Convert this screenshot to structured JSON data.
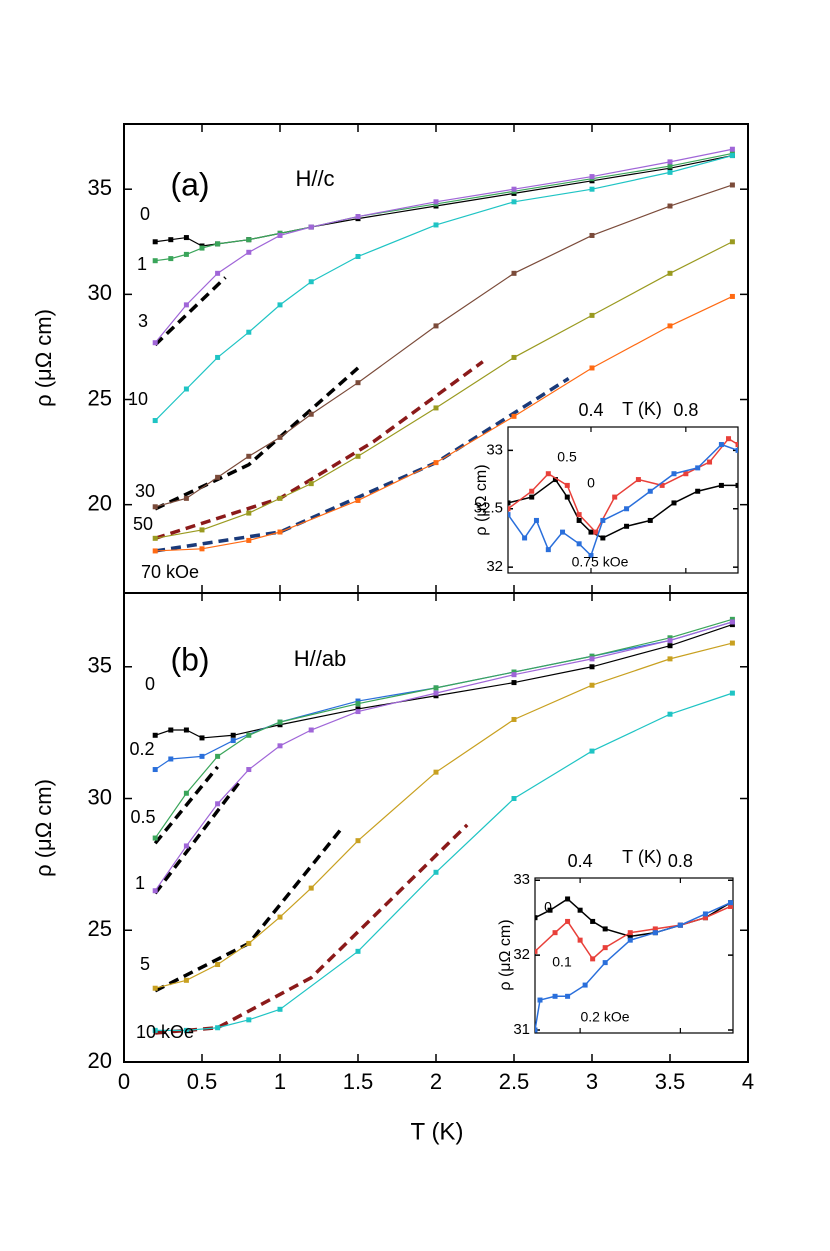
{
  "chart_data": [
    {
      "type": "line",
      "panel_label": "(a)",
      "field": "H//c",
      "ylabel": "ρ (μΩ cm)",
      "xlim": [
        0,
        4
      ],
      "ylim": [
        15.8,
        38.1
      ],
      "xticks": [
        0,
        0.5,
        1,
        1.5,
        2,
        2.5,
        3,
        3.5,
        4
      ],
      "yticks": [
        20,
        25,
        30,
        35
      ],
      "series": [
        {
          "name": "0",
          "color": "#000000",
          "x": [
            0.2,
            0.3,
            0.4,
            0.5,
            0.6,
            0.8,
            1.0,
            1.2,
            1.5,
            2.0,
            2.5,
            3.0,
            3.5,
            3.9
          ],
          "values": [
            32.5,
            32.6,
            32.7,
            32.3,
            32.4,
            32.6,
            32.9,
            33.2,
            33.6,
            34.2,
            34.8,
            35.4,
            36.0,
            36.6
          ]
        },
        {
          "name": "1",
          "color": "#3aa55a",
          "x": [
            0.2,
            0.3,
            0.4,
            0.5,
            0.6,
            0.8,
            1.0,
            1.2,
            1.5,
            2.0,
            2.5,
            3.0,
            3.5,
            3.9
          ],
          "values": [
            31.6,
            31.7,
            31.9,
            32.2,
            32.4,
            32.6,
            32.9,
            33.2,
            33.7,
            34.3,
            34.9,
            35.5,
            36.1,
            36.7
          ]
        },
        {
          "name": "3",
          "color": "#a066d8",
          "x": [
            0.2,
            0.4,
            0.6,
            0.8,
            1.0,
            1.2,
            1.5,
            2.0,
            2.5,
            3.0,
            3.5,
            3.9
          ],
          "values": [
            27.7,
            29.5,
            31.0,
            32.0,
            32.8,
            33.2,
            33.7,
            34.4,
            35.0,
            35.6,
            36.3,
            36.9
          ]
        },
        {
          "name": "10",
          "color": "#1fc4c4",
          "x": [
            0.2,
            0.4,
            0.6,
            0.8,
            1.0,
            1.2,
            1.5,
            2.0,
            2.5,
            3.0,
            3.5,
            3.9
          ],
          "values": [
            24.0,
            25.5,
            27.0,
            28.2,
            29.5,
            30.6,
            31.8,
            33.3,
            34.4,
            35.0,
            35.8,
            36.6
          ]
        },
        {
          "name": "30",
          "color": "#7b4b3a",
          "x": [
            0.2,
            0.4,
            0.6,
            0.8,
            1.0,
            1.2,
            1.5,
            2.0,
            2.5,
            3.0,
            3.5,
            3.9
          ],
          "values": [
            19.9,
            20.3,
            21.3,
            22.3,
            23.2,
            24.3,
            25.8,
            28.5,
            31.0,
            32.8,
            34.2,
            35.2
          ]
        },
        {
          "name": "50",
          "color": "#9a9a20",
          "x": [
            0.2,
            0.5,
            0.8,
            1.0,
            1.2,
            1.5,
            2.0,
            2.5,
            3.0,
            3.5,
            3.9
          ],
          "values": [
            18.4,
            18.8,
            19.6,
            20.3,
            21.0,
            22.3,
            24.6,
            27.0,
            29.0,
            31.0,
            32.5
          ]
        },
        {
          "name": "70 kOe",
          "color": "#ff6a13",
          "x": [
            0.2,
            0.5,
            0.8,
            1.0,
            1.5,
            2.0,
            2.5,
            3.0,
            3.5,
            3.9
          ],
          "values": [
            17.8,
            17.9,
            18.3,
            18.7,
            20.2,
            22.0,
            24.2,
            26.5,
            28.5,
            29.9
          ]
        }
      ],
      "fits": [
        {
          "color": "#000000",
          "x": [
            0.2,
            0.65
          ],
          "values": [
            27.6,
            30.8
          ]
        },
        {
          "color": "#000000",
          "x": [
            0.2,
            0.8,
            1.5
          ],
          "values": [
            19.8,
            21.9,
            26.5
          ]
        },
        {
          "color": "#8b1a1a",
          "x": [
            0.2,
            1.0,
            1.6,
            2.3
          ],
          "values": [
            18.4,
            20.3,
            23.0,
            26.8
          ]
        },
        {
          "color": "#1a3a7a",
          "x": [
            0.2,
            1.0,
            2.0,
            2.85
          ],
          "values": [
            17.8,
            18.7,
            22.0,
            26.0
          ]
        }
      ]
    },
    {
      "type": "line",
      "panel_label": "(b)",
      "field": "H//ab",
      "ylabel": "ρ (μΩ cm)",
      "xlabel": "T (K)",
      "xlim": [
        0,
        4
      ],
      "ylim": [
        20,
        37.8
      ],
      "xticks": [
        0,
        0.5,
        1,
        1.5,
        2,
        2.5,
        3,
        3.5,
        4
      ],
      "yticks": [
        20,
        25,
        30,
        35
      ],
      "series": [
        {
          "name": "0",
          "color": "#000000",
          "x": [
            0.2,
            0.3,
            0.4,
            0.5,
            0.7,
            1.0,
            1.5,
            2.0,
            2.5,
            3.0,
            3.5,
            3.9
          ],
          "values": [
            32.4,
            32.6,
            32.6,
            32.3,
            32.4,
            32.8,
            33.4,
            33.9,
            34.4,
            35.0,
            35.8,
            36.6
          ]
        },
        {
          "name": "0.2",
          "color": "#2a6fdb",
          "x": [
            0.2,
            0.3,
            0.5,
            0.7,
            1.0,
            1.5,
            2.0,
            2.5,
            3.0,
            3.5,
            3.9
          ],
          "values": [
            31.1,
            31.5,
            31.6,
            32.2,
            32.9,
            33.7,
            34.2,
            34.8,
            35.4,
            36.0,
            36.7
          ]
        },
        {
          "name": "0.5",
          "color": "#3aa55a",
          "x": [
            0.2,
            0.4,
            0.6,
            0.8,
            1.0,
            1.5,
            2.0,
            2.5,
            3.0,
            3.5,
            3.9
          ],
          "values": [
            28.5,
            30.2,
            31.6,
            32.4,
            32.9,
            33.6,
            34.2,
            34.8,
            35.4,
            36.1,
            36.8
          ]
        },
        {
          "name": "1",
          "color": "#a066d8",
          "x": [
            0.2,
            0.4,
            0.6,
            0.8,
            1.0,
            1.2,
            1.5,
            2.0,
            2.5,
            3.0,
            3.5,
            3.9
          ],
          "values": [
            26.5,
            28.2,
            29.8,
            31.1,
            32.0,
            32.6,
            33.3,
            34.0,
            34.7,
            35.3,
            36.0,
            36.7
          ]
        },
        {
          "name": "5",
          "color": "#c8a020",
          "x": [
            0.2,
            0.4,
            0.6,
            0.8,
            1.0,
            1.2,
            1.5,
            2.0,
            2.5,
            3.0,
            3.5,
            3.9
          ],
          "values": [
            22.8,
            23.1,
            23.7,
            24.5,
            25.5,
            26.6,
            28.4,
            31.0,
            33.0,
            34.3,
            35.3,
            35.9
          ]
        },
        {
          "name": "10 kOe",
          "color": "#1fc4c4",
          "x": [
            0.2,
            0.4,
            0.6,
            0.8,
            1.0,
            1.5,
            2.0,
            2.5,
            3.0,
            3.5,
            3.9
          ],
          "values": [
            21.2,
            21.2,
            21.3,
            21.6,
            22.0,
            24.2,
            27.2,
            30.0,
            31.8,
            33.2,
            34.0
          ]
        }
      ],
      "fits": [
        {
          "color": "#000000",
          "x": [
            0.2,
            0.6
          ],
          "values": [
            28.3,
            31.2
          ]
        },
        {
          "color": "#000000",
          "x": [
            0.2,
            0.75
          ],
          "values": [
            26.4,
            30.7
          ]
        },
        {
          "color": "#000000",
          "x": [
            0.2,
            0.8,
            1.4
          ],
          "values": [
            22.7,
            24.5,
            28.9
          ]
        },
        {
          "color": "#8b1a1a",
          "x": [
            0.2,
            0.6,
            1.2,
            2.2
          ],
          "values": [
            21.1,
            21.3,
            23.2,
            29.0
          ]
        }
      ]
    },
    {
      "type": "line",
      "ylabel": "ρ (μΩ cm)",
      "xlabel": "T (K)",
      "xlim": [
        0.05,
        1.02
      ],
      "ylim": [
        31.95,
        33.2
      ],
      "xticks": [
        0.4,
        0.8
      ],
      "yticks": [
        32,
        32.5,
        33
      ],
      "series": [
        {
          "name": "0",
          "color": "#000000",
          "x": [
            0.05,
            0.15,
            0.25,
            0.3,
            0.35,
            0.4,
            0.45,
            0.55,
            0.65,
            0.75,
            0.85,
            0.95,
            1.02
          ],
          "values": [
            32.55,
            32.6,
            32.75,
            32.6,
            32.4,
            32.3,
            32.25,
            32.35,
            32.4,
            32.55,
            32.65,
            32.7,
            32.7
          ]
        },
        {
          "name": "0.5",
          "color": "#e8403a",
          "x": [
            0.05,
            0.15,
            0.22,
            0.3,
            0.35,
            0.42,
            0.5,
            0.6,
            0.7,
            0.8,
            0.9,
            0.98,
            1.02
          ],
          "values": [
            32.5,
            32.65,
            32.8,
            32.7,
            32.45,
            32.3,
            32.6,
            32.75,
            32.7,
            32.8,
            32.9,
            33.1,
            33.05
          ]
        },
        {
          "name": "0.75 kOe",
          "color": "#2a6fdb",
          "x": [
            0.05,
            0.12,
            0.17,
            0.22,
            0.28,
            0.35,
            0.4,
            0.45,
            0.55,
            0.65,
            0.75,
            0.85,
            0.95,
            1.02
          ],
          "values": [
            32.45,
            32.25,
            32.4,
            32.15,
            32.3,
            32.2,
            32.1,
            32.4,
            32.5,
            32.65,
            32.8,
            32.85,
            33.05,
            33.0
          ]
        }
      ]
    },
    {
      "type": "line",
      "ylabel": "ρ (μΩ cm)",
      "xlabel": "T (K)",
      "xlim": [
        0.22,
        1.01
      ],
      "ylim": [
        30.96,
        33.03
      ],
      "xticks": [
        0.4,
        0.8
      ],
      "yticks": [
        31,
        32,
        33
      ],
      "series": [
        {
          "name": "0",
          "color": "#000000",
          "x": [
            0.22,
            0.28,
            0.35,
            0.4,
            0.45,
            0.5,
            0.6,
            0.7,
            0.8,
            0.9,
            1.0
          ],
          "values": [
            32.5,
            32.6,
            32.75,
            32.6,
            32.45,
            32.35,
            32.25,
            32.3,
            32.4,
            32.5,
            32.7
          ]
        },
        {
          "name": "0.1",
          "color": "#e8403a",
          "x": [
            0.22,
            0.3,
            0.35,
            0.4,
            0.45,
            0.5,
            0.6,
            0.7,
            0.8,
            0.9,
            1.0
          ],
          "values": [
            32.05,
            32.3,
            32.45,
            32.2,
            31.95,
            32.1,
            32.3,
            32.35,
            32.4,
            32.5,
            32.65
          ]
        },
        {
          "name": "0.2 kOe",
          "color": "#2a6fdb",
          "x": [
            0.22,
            0.24,
            0.3,
            0.35,
            0.42,
            0.5,
            0.6,
            0.7,
            0.8,
            0.9,
            1.0
          ],
          "values": [
            31.0,
            31.4,
            31.45,
            31.45,
            31.6,
            31.9,
            32.2,
            32.3,
            32.4,
            32.55,
            32.7
          ]
        }
      ]
    }
  ]
}
